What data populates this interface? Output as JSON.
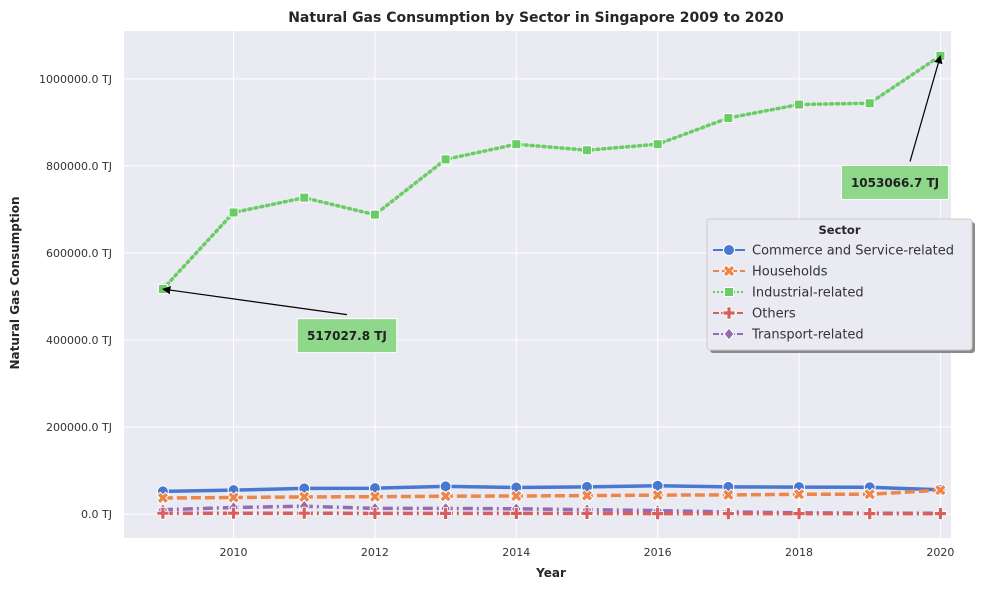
{
  "chart_data": {
    "type": "line",
    "title": "Natural Gas Consumption by Sector in Singapore 2009 to 2020",
    "xlabel": "Year",
    "ylabel": "Natural Gas Consumption",
    "x": [
      2009,
      2010,
      2011,
      2012,
      2013,
      2014,
      2015,
      2016,
      2017,
      2018,
      2019,
      2020
    ],
    "xlim": [
      2008.45,
      2020.15
    ],
    "ylim": [
      -55000,
      1110000
    ],
    "xticks": [
      2010,
      2012,
      2014,
      2016,
      2018,
      2020
    ],
    "yticks": [
      0,
      200000,
      400000,
      600000,
      800000,
      1000000
    ],
    "ytick_labels": [
      "0.0 TJ",
      "200000.0 TJ",
      "400000.0 TJ",
      "600000.0 TJ",
      "800000.0 TJ",
      "1000000.0 TJ"
    ],
    "grid": true,
    "legend": {
      "title": "Sector",
      "placement": "center-right"
    },
    "series": [
      {
        "name": "Commerce and Service-related",
        "color": "#4878d0",
        "dash": "solid",
        "marker": "circle",
        "values": [
          52000,
          55000,
          59000,
          59500,
          63500,
          61000,
          62500,
          65000,
          62500,
          62000,
          61500,
          56000
        ]
      },
      {
        "name": "Households",
        "color": "#ee854a",
        "dash": "dashed",
        "marker": "x",
        "values": [
          37000,
          38000,
          39500,
          40000,
          41000,
          41500,
          42500,
          43500,
          44000,
          45500,
          45500,
          55000
        ]
      },
      {
        "name": "Industrial-related",
        "color": "#6acc64",
        "dash": "dotted",
        "marker": "square",
        "values": [
          517027.8,
          693000,
          727000,
          688000,
          815000,
          850000,
          836000,
          850000,
          910000,
          941000,
          944000,
          1053066.7
        ]
      },
      {
        "name": "Others",
        "color": "#d65f5f",
        "dash": "dashdot",
        "marker": "plus",
        "values": [
          2000,
          2000,
          2000,
          1500,
          1500,
          1500,
          1500,
          1000,
          1000,
          1000,
          1000,
          1000
        ]
      },
      {
        "name": "Transport-related",
        "color": "#956cb4",
        "dash": "dashdot",
        "marker": "diamond",
        "values": [
          10000,
          15000,
          18000,
          13000,
          13000,
          12000,
          10000,
          8000,
          5000,
          3000,
          2000,
          2000
        ]
      }
    ],
    "annotations": [
      {
        "text": "517027.8 TJ",
        "x": 2009,
        "y": 517027.8,
        "text_x": 2010.9,
        "text_y": 410000
      },
      {
        "text": "1053066.7 TJ",
        "x": 2020,
        "y": 1053066.7,
        "text_x": 2018.6,
        "text_y": 762000
      }
    ]
  }
}
